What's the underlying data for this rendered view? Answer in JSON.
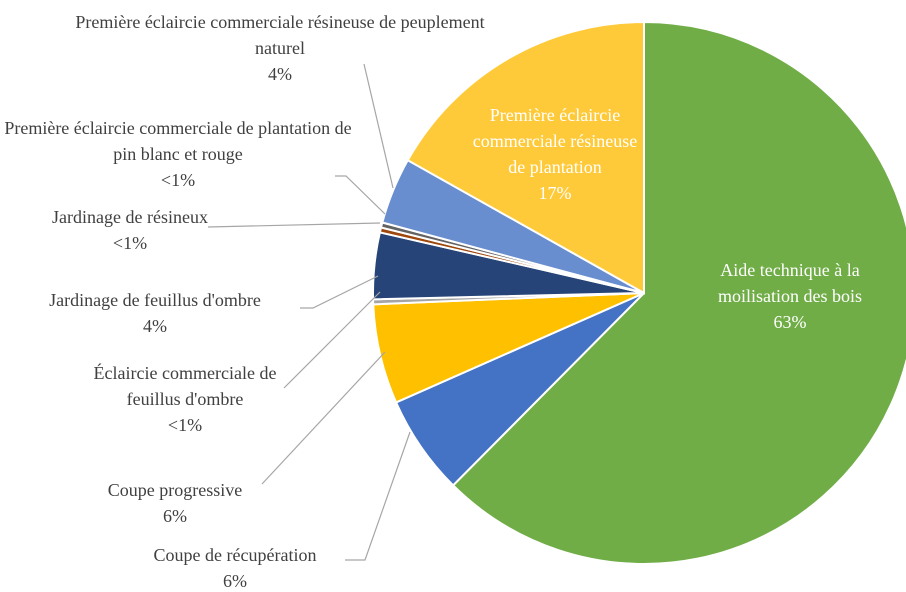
{
  "chart_data": {
    "type": "pie",
    "categories": [
      "Aide technique à la moilisation des bois",
      "Coupe de récupération",
      "Coupe progressive",
      "Éclaircie commerciale de feuillus d'ombre",
      "Jardinage de feuillus d'ombre",
      "Jardinage de résineux",
      "Première éclaircie commerciale de plantation de pin blanc et rouge",
      "Première éclaircie commerciale résineuse de peuplement naturel",
      "Première éclaircie commerciale résineuse de plantation"
    ],
    "values": [
      63,
      6,
      6,
      0.3,
      4,
      0.3,
      0.3,
      4,
      17
    ],
    "value_labels": [
      "63%",
      "6%",
      "6%",
      "<1%",
      "4%",
      "<1%",
      "<1%",
      "4%",
      "17%"
    ],
    "colors": [
      "#70ad47",
      "#4472c4",
      "#ffc000",
      "#a5a5a5",
      "#264478",
      "#9e480e",
      "#636363",
      "#698ed0",
      "#ffca3a"
    ]
  }
}
